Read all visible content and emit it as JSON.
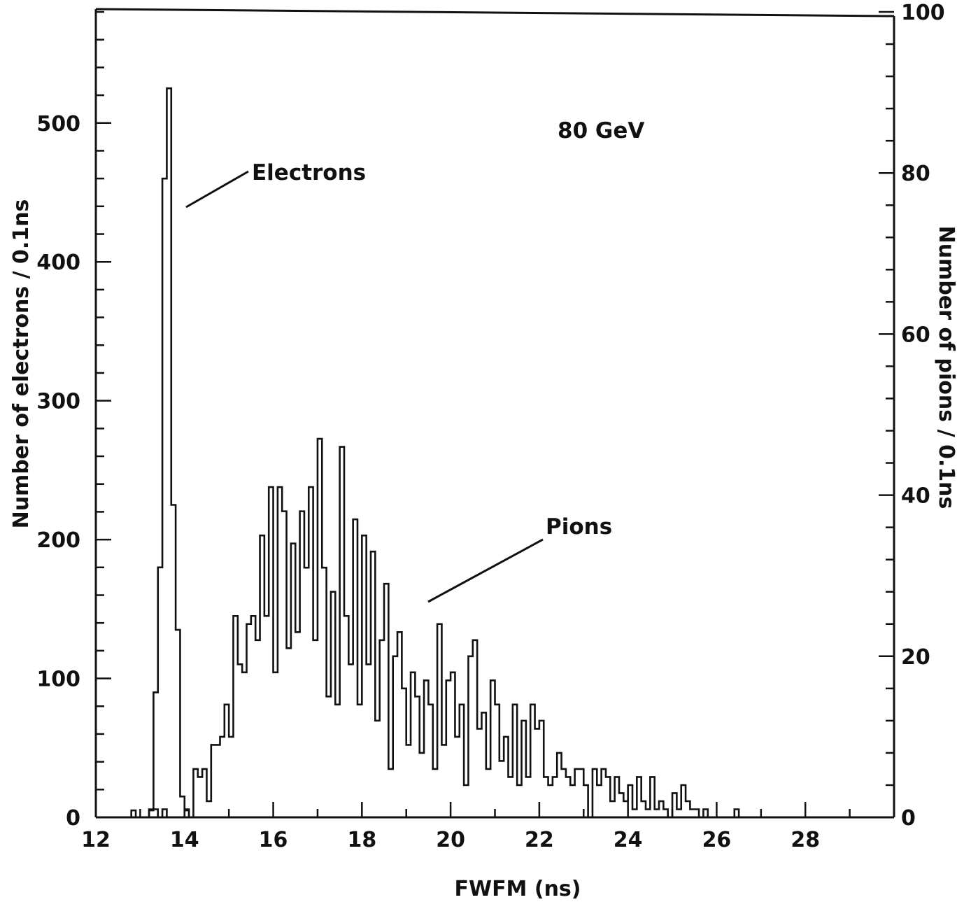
{
  "chart_data": {
    "type": "histogram",
    "title": "",
    "annotation_energy": "80 GeV",
    "xlabel": "FWFM (ns)",
    "ylabel_left": "Number of electrons / 0.1ns",
    "ylabel_right": "Number of pions / 0.1ns",
    "xlim": [
      12,
      30
    ],
    "ylim_left": [
      0,
      580
    ],
    "ylim_right": [
      0,
      100
    ],
    "x_ticks": [
      "12",
      "14",
      "16",
      "18",
      "20",
      "22",
      "24",
      "26",
      "28"
    ],
    "y_ticks_left": [
      "0",
      "100",
      "200",
      "300",
      "400",
      "500"
    ],
    "y_ticks_right": [
      "0",
      "20",
      "40",
      "60",
      "80",
      "100"
    ],
    "bin_width": 0.1,
    "series": [
      {
        "name": "Electrons",
        "axis": "left",
        "x": [
          12.8,
          12.9,
          13.0,
          13.1,
          13.2,
          13.3,
          13.4,
          13.5,
          13.6,
          13.7,
          13.8,
          13.9,
          14.0,
          14.1
        ],
        "values": [
          5,
          0,
          0,
          0,
          5,
          90,
          180,
          460,
          525,
          225,
          135,
          15,
          5,
          0
        ]
      },
      {
        "name": "Pions",
        "axis": "right",
        "x": [
          13.2,
          13.3,
          13.4,
          13.5,
          13.6,
          13.7,
          13.8,
          13.9,
          14.0,
          14.1,
          14.2,
          14.3,
          14.4,
          14.5,
          14.6,
          14.7,
          14.8,
          14.9,
          15.0,
          15.1,
          15.2,
          15.3,
          15.4,
          15.5,
          15.6,
          15.7,
          15.8,
          15.9,
          16.0,
          16.1,
          16.2,
          16.3,
          16.4,
          16.5,
          16.6,
          16.7,
          16.8,
          16.9,
          17.0,
          17.1,
          17.2,
          17.3,
          17.4,
          17.5,
          17.6,
          17.7,
          17.8,
          17.9,
          18.0,
          18.1,
          18.2,
          18.3,
          18.4,
          18.5,
          18.6,
          18.7,
          18.8,
          18.9,
          19.0,
          19.1,
          19.2,
          19.3,
          19.4,
          19.5,
          19.6,
          19.7,
          19.8,
          19.9,
          20.0,
          20.1,
          20.2,
          20.3,
          20.4,
          20.5,
          20.6,
          20.7,
          20.8,
          20.9,
          21.0,
          21.1,
          21.2,
          21.3,
          21.4,
          21.5,
          21.6,
          21.7,
          21.8,
          21.9,
          22.0,
          22.1,
          22.2,
          22.3,
          22.4,
          22.5,
          22.6,
          22.7,
          22.8,
          22.9,
          23.0,
          23.1,
          23.2,
          23.3,
          23.4,
          23.5,
          23.6,
          23.7,
          23.8,
          23.9,
          24.0,
          24.1,
          24.2,
          24.3,
          24.4,
          24.5,
          24.6,
          24.7,
          24.8,
          24.9,
          25.0,
          25.1,
          25.2,
          25.3,
          25.4,
          25.5,
          25.6,
          25.7,
          25.8,
          25.9,
          26.0,
          26.1,
          26.2,
          26.3,
          26.4,
          26.5,
          26.6,
          26.7,
          26.8
        ],
        "values": [
          1,
          1,
          0,
          1,
          0,
          0,
          0,
          0,
          1,
          0,
          6,
          5,
          6,
          2,
          9,
          9,
          10,
          14,
          10,
          25,
          19,
          18,
          24,
          25,
          22,
          35,
          25,
          41,
          18,
          41,
          38,
          21,
          34,
          23,
          38,
          31,
          41,
          22,
          47,
          31,
          15,
          28,
          14,
          46,
          25,
          19,
          37,
          14,
          35,
          19,
          33,
          12,
          22,
          29,
          6,
          20,
          23,
          16,
          9,
          18,
          15,
          8,
          17,
          14,
          6,
          24,
          9,
          17,
          18,
          10,
          14,
          4,
          20,
          22,
          11,
          13,
          6,
          17,
          14,
          7,
          10,
          5,
          14,
          4,
          12,
          5,
          14,
          11,
          12,
          5,
          4,
          5,
          8,
          6,
          5,
          4,
          6,
          6,
          4,
          0,
          6,
          4,
          6,
          5,
          2,
          5,
          3,
          2,
          4,
          1,
          5,
          2,
          1,
          5,
          1,
          2,
          1,
          0,
          3,
          1,
          4,
          2,
          1,
          1,
          0,
          1,
          0,
          0,
          0,
          0,
          0,
          0,
          1,
          0,
          0,
          0,
          0
        ]
      }
    ],
    "labels": {
      "electrons": "Electrons",
      "pions": "Pions"
    },
    "grid": false,
    "legend": "none"
  }
}
